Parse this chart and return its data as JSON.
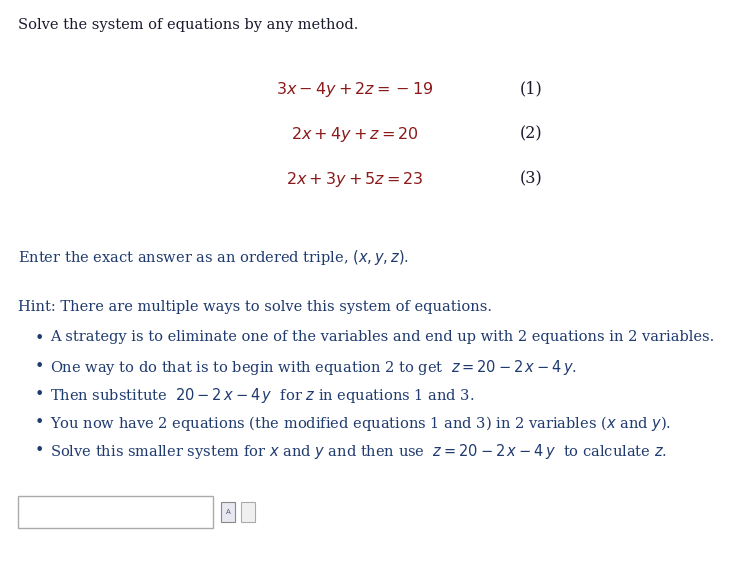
{
  "bg_color": "#ffffff",
  "title_text": "Solve the system of equations by any method.",
  "title_fontsize": 10.5,
  "title_color": "#1a1a2e",
  "eq_color": "#8b1a1a",
  "eq_label_color": "#1a1a2e",
  "eq_fontsize": 11.5,
  "eq1_latex": "$3x - 4y + 2z = -19$",
  "eq2_latex": "$2x + 4y + z = 20$",
  "eq3_latex": "$2x + 3y + 5z = 23$",
  "eq_label1": "(1)",
  "eq_label2": "(2)",
  "eq_label3": "(3)",
  "body_color": "#1f3a6e",
  "body_fontsize": 10.5,
  "hint_color": "#1f3a6e",
  "hint_fontsize": 10.5
}
